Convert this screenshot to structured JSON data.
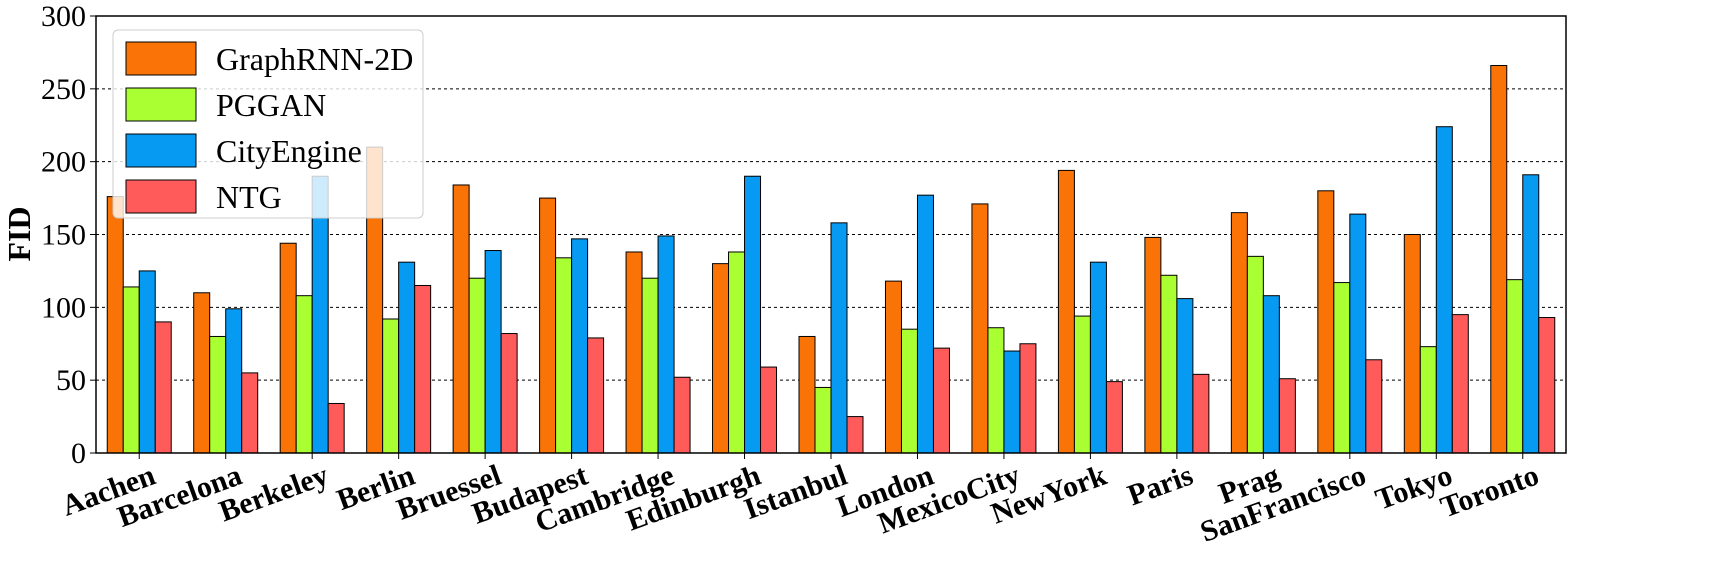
{
  "chart_data": {
    "type": "bar",
    "title": "",
    "xlabel": "",
    "ylabel": "FID",
    "ylim": [
      0,
      300
    ],
    "yticks": [
      0,
      50,
      100,
      150,
      200,
      250,
      300
    ],
    "grid": "horizontal dashed",
    "legend_position": "top-left",
    "categories": [
      "Aachen",
      "Barcelona",
      "Berkeley",
      "Berlin",
      "Bruessel",
      "Budapest",
      "Cambridge",
      "Edinburgh",
      "Istanbul",
      "London",
      "MexicoCity",
      "NewYork",
      "Paris",
      "Prag",
      "SanFrancisco",
      "Tokyo",
      "Toronto"
    ],
    "series": [
      {
        "name": "GraphRNN-2D",
        "color": "#f97306",
        "values": [
          176,
          110,
          144,
          210,
          184,
          175,
          138,
          130,
          80,
          118,
          171,
          194,
          148,
          165,
          180,
          150,
          266
        ]
      },
      {
        "name": "PGGAN",
        "color": "#aaff32",
        "values": [
          114,
          80,
          108,
          92,
          120,
          134,
          120,
          138,
          45,
          85,
          86,
          94,
          122,
          135,
          117,
          73,
          119
        ]
      },
      {
        "name": "CityEngine",
        "color": "#069af3",
        "values": [
          125,
          99,
          190,
          131,
          139,
          147,
          149,
          190,
          158,
          177,
          70,
          131,
          106,
          108,
          164,
          224,
          191
        ]
      },
      {
        "name": "NTG",
        "color": "#ff5b5b",
        "values": [
          90,
          55,
          34,
          115,
          82,
          79,
          52,
          59,
          25,
          72,
          75,
          49,
          54,
          51,
          64,
          95,
          93
        ]
      }
    ]
  }
}
